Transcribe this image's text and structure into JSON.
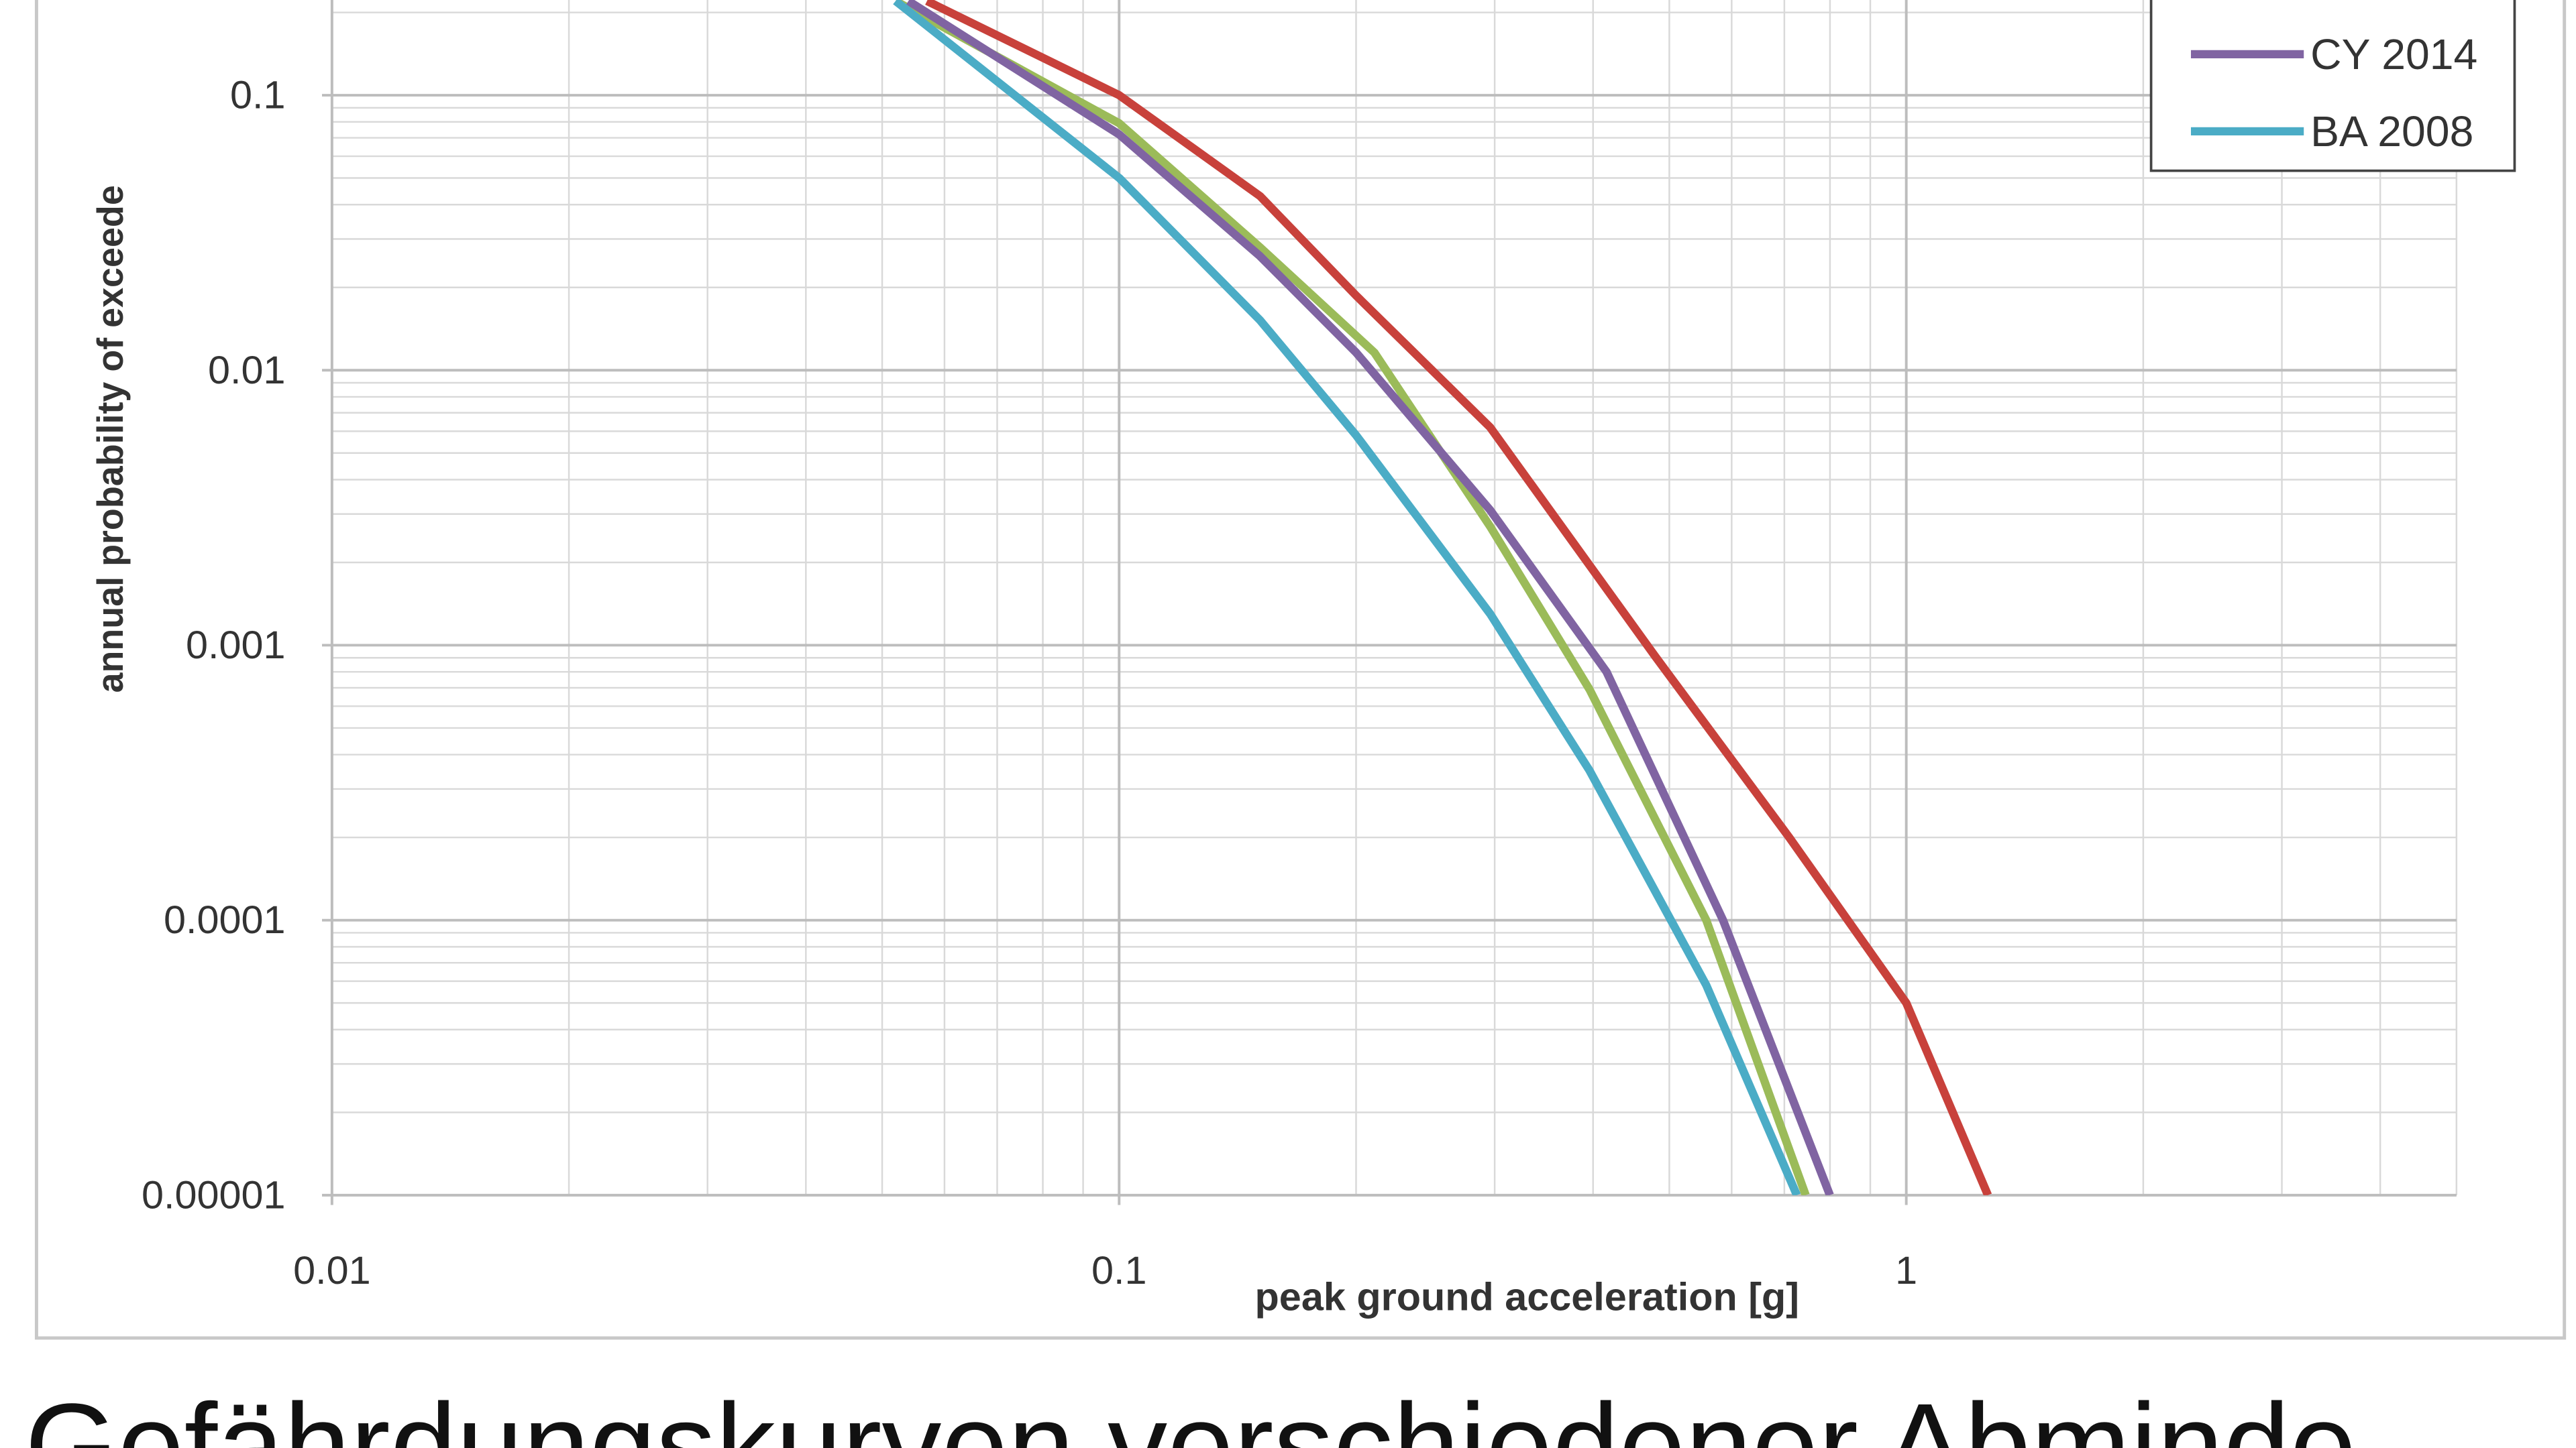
{
  "chart_data": {
    "type": "line",
    "y_label": "annual probability of exceede",
    "x_label": "peak ground acceleration [g]",
    "caption": "Gefährdungskurven verschiedener Abminde",
    "log_x": true,
    "log_y": true,
    "grid": true,
    "xlim": [
      0.01,
      5
    ],
    "xticks": [
      0.01,
      0.1,
      1
    ],
    "ylim": [
      1e-05,
      1
    ],
    "yticks": [
      1e-05,
      0.0001,
      0.001,
      0.01,
      0.1
    ],
    "legend": "upper right",
    "series": [
      {
        "color": "#c8413b",
        "x": [
          0.057,
          0.1,
          0.151,
          0.2,
          0.296,
          0.48,
          0.71,
          1.0,
          1.27
        ],
        "values": [
          0.22,
          0.1,
          0.043,
          0.0187,
          0.0062,
          0.00091,
          0.0002,
          5e-05,
          1e-05
        ]
      },
      {
        "color": "#9bbb59",
        "x": [
          0.052,
          0.1,
          0.151,
          0.211,
          0.296,
          0.396,
          0.557,
          0.745
        ],
        "values": [
          0.22,
          0.079,
          0.028,
          0.0116,
          0.0027,
          0.00069,
          0.0001,
          1e-05
        ]
      },
      {
        "name": "CY 2014",
        "color": "#8064a2",
        "x": [
          0.054,
          0.1,
          0.151,
          0.2,
          0.296,
          0.416,
          0.585,
          0.8
        ],
        "values": [
          0.22,
          0.072,
          0.026,
          0.0116,
          0.0031,
          0.0008,
          0.0001,
          1e-05
        ]
      },
      {
        "name": "BA 2008",
        "color": "#4bacc6",
        "x": [
          0.052,
          0.1,
          0.151,
          0.2,
          0.296,
          0.396,
          0.557,
          0.726
        ],
        "values": [
          0.22,
          0.05,
          0.0152,
          0.0058,
          0.0013,
          0.00035,
          5.8e-05,
          1e-05
        ]
      }
    ]
  }
}
